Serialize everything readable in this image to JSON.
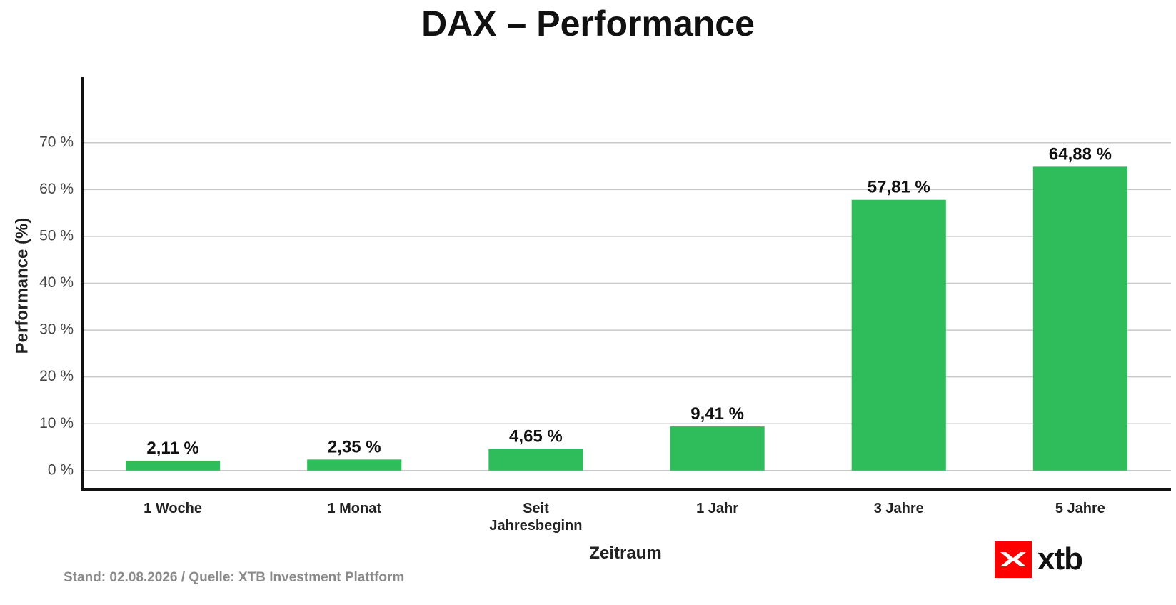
{
  "chart_data": {
    "type": "bar",
    "title": "DAX – Performance",
    "xlabel": "Zeitraum",
    "ylabel": "Performance (%)",
    "categories": [
      [
        "1 Woche"
      ],
      [
        "1 Monat"
      ],
      [
        "Seit",
        "Jahresbeginn"
      ],
      [
        "1 Jahr"
      ],
      [
        "3 Jahre"
      ],
      [
        "5 Jahre"
      ]
    ],
    "values": [
      2.11,
      2.35,
      4.65,
      9.41,
      57.81,
      64.88
    ],
    "value_labels": [
      "2,11 %",
      "2,35 %",
      "4,65 %",
      "9,41 %",
      "57,81 %",
      "64,88 %"
    ],
    "yticks": [
      0,
      10,
      20,
      30,
      40,
      50,
      60,
      70
    ],
    "ytick_labels": [
      "0 %",
      "10 %",
      "20 %",
      "30 %",
      "40 %",
      "50 %",
      "60 %",
      "70 %"
    ],
    "ylim": [
      -4,
      84
    ],
    "grid": true,
    "bar_color": "#2ebd5a"
  },
  "footer": {
    "source": "Stand: 02.08.2026 / Quelle: XTB Investment Plattform"
  },
  "logo": {
    "text": "xtb",
    "color": "#ff0000",
    "icon": "xtb-x-icon"
  }
}
